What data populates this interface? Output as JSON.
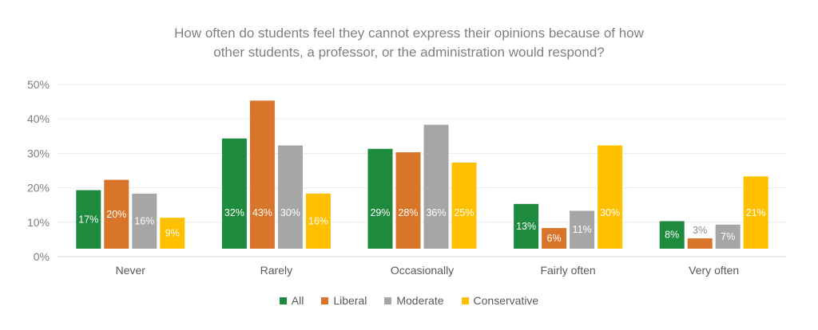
{
  "chart_data": {
    "type": "bar",
    "title_lines": [
      "How often do students feel they cannot express their opinions because of how",
      "other students, a professor, or the administration would respond?"
    ],
    "categories": [
      "Never",
      "Rarely",
      "Occasionally",
      "Fairly often",
      "Very often"
    ],
    "series": [
      {
        "name": "All",
        "color": "#1e8a3e",
        "values": [
          17,
          32,
          29,
          13,
          8
        ],
        "labels": [
          "17%",
          "32%",
          "29%",
          "13%",
          "8%"
        ]
      },
      {
        "name": "Liberal",
        "color": "#d9742b",
        "values": [
          20,
          43,
          28,
          6,
          3
        ],
        "labels": [
          "20%",
          "43%",
          "28%",
          "6%",
          "3%"
        ]
      },
      {
        "name": "Moderate",
        "color": "#a6a6a6",
        "values": [
          16,
          30,
          36,
          11,
          7
        ],
        "labels": [
          "16%",
          "30%",
          "36%",
          "11%",
          "7%"
        ]
      },
      {
        "name": "Conservative",
        "color": "#ffc000",
        "values": [
          9,
          16,
          25,
          30,
          21
        ],
        "labels": [
          "9%",
          "16%",
          "25%",
          "30%",
          "21%"
        ]
      }
    ],
    "y_ticks": [
      "0%",
      "10%",
      "20%",
      "30%",
      "40%",
      "50%"
    ],
    "ylim": [
      0,
      50
    ],
    "xlabel": "",
    "ylabel": "",
    "legend_position": "bottom",
    "grid": true
  }
}
